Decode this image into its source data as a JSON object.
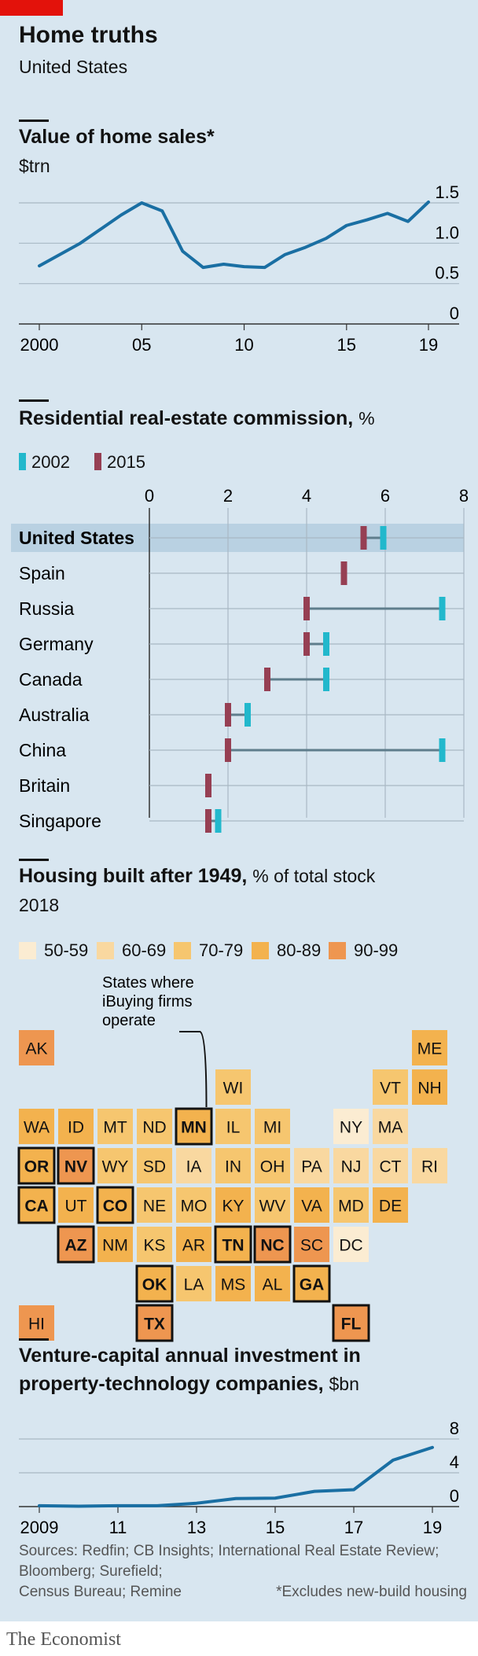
{
  "header": {
    "title": "Home truths",
    "subtitle": "United States"
  },
  "chart_data": [
    {
      "type": "line",
      "title": "Value of home sales*",
      "ylabel": "$trn",
      "x": [
        2000,
        2002,
        2004,
        2005,
        2006,
        2007,
        2008,
        2009,
        2010,
        2011,
        2012,
        2013,
        2014,
        2015,
        2016,
        2017,
        2018,
        2019
      ],
      "values": [
        0.72,
        1.0,
        1.35,
        1.5,
        1.4,
        0.9,
        0.7,
        0.74,
        0.71,
        0.7,
        0.86,
        0.95,
        1.06,
        1.22,
        1.29,
        1.37,
        1.27,
        1.51
      ],
      "ylim": [
        0,
        1.5
      ],
      "yticks": [
        "0",
        "0.5",
        "1.0",
        "1.5"
      ],
      "xticks": [
        "2000",
        "05",
        "10",
        "15",
        "19"
      ],
      "color": "#1a6fa3"
    },
    {
      "type": "range",
      "title": "Residential real-estate commission,",
      "title_unit": "%",
      "legend": [
        {
          "name": "2002",
          "color": "#22b8cc"
        },
        {
          "name": "2015",
          "color": "#963f53"
        }
      ],
      "xticks": [
        "0",
        "2",
        "4",
        "6",
        "8"
      ],
      "xlim": [
        0,
        8
      ],
      "rows": [
        {
          "country": "United States",
          "y2002": 5.95,
          "y2015": 5.45,
          "highlight": true
        },
        {
          "country": "Spain",
          "y2002": 4.95,
          "y2015": 4.95
        },
        {
          "country": "Russia",
          "y2002": 7.45,
          "y2015": 4.0
        },
        {
          "country": "Germany",
          "y2002": 4.5,
          "y2015": 4.0
        },
        {
          "country": "Canada",
          "y2002": 4.5,
          "y2015": 3.0
        },
        {
          "country": "Australia",
          "y2002": 2.5,
          "y2015": 2.0
        },
        {
          "country": "China",
          "y2002": 7.45,
          "y2015": 2.0
        },
        {
          "country": "Britain",
          "y2002": 1.5,
          "y2015": 1.5
        },
        {
          "country": "Singapore",
          "y2002": 1.75,
          "y2015": 1.5
        }
      ]
    },
    {
      "type": "tilemap",
      "title": "Housing built after 1949,",
      "title_unit": "% of total stock",
      "subtitle": "2018",
      "legend": [
        {
          "label": "50-59",
          "color": "#fbecd2"
        },
        {
          "label": "60-69",
          "color": "#f9d8a0"
        },
        {
          "label": "70-79",
          "color": "#f6c66f"
        },
        {
          "label": "80-89",
          "color": "#f3b24e"
        },
        {
          "label": "90-99",
          "color": "#ee9650"
        }
      ],
      "annotation": [
        "States where",
        "iBuying firms",
        "operate"
      ],
      "states": [
        {
          "code": "AK",
          "col": 0,
          "row": 0,
          "bin": 4,
          "ibuying": false
        },
        {
          "code": "ME",
          "col": 10,
          "row": 0,
          "bin": 3,
          "ibuying": false
        },
        {
          "code": "WI",
          "col": 5,
          "row": 1,
          "bin": 2,
          "ibuying": false
        },
        {
          "code": "VT",
          "col": 9,
          "row": 1,
          "bin": 2,
          "ibuying": false
        },
        {
          "code": "NH",
          "col": 10,
          "row": 1,
          "bin": 3,
          "ibuying": false
        },
        {
          "code": "WA",
          "col": 0,
          "row": 2,
          "bin": 3,
          "ibuying": false
        },
        {
          "code": "ID",
          "col": 1,
          "row": 2,
          "bin": 3,
          "ibuying": false
        },
        {
          "code": "MT",
          "col": 2,
          "row": 2,
          "bin": 2,
          "ibuying": false
        },
        {
          "code": "ND",
          "col": 3,
          "row": 2,
          "bin": 2,
          "ibuying": false
        },
        {
          "code": "MN",
          "col": 4,
          "row": 2,
          "bin": 3,
          "ibuying": true
        },
        {
          "code": "IL",
          "col": 5,
          "row": 2,
          "bin": 2,
          "ibuying": false
        },
        {
          "code": "MI",
          "col": 6,
          "row": 2,
          "bin": 2,
          "ibuying": false
        },
        {
          "code": "NY",
          "col": 8,
          "row": 2,
          "bin": 0,
          "ibuying": false
        },
        {
          "code": "MA",
          "col": 9,
          "row": 2,
          "bin": 1,
          "ibuying": false
        },
        {
          "code": "OR",
          "col": 0,
          "row": 3,
          "bin": 3,
          "ibuying": true
        },
        {
          "code": "NV",
          "col": 1,
          "row": 3,
          "bin": 4,
          "ibuying": true
        },
        {
          "code": "WY",
          "col": 2,
          "row": 3,
          "bin": 2,
          "ibuying": false
        },
        {
          "code": "SD",
          "col": 3,
          "row": 3,
          "bin": 2,
          "ibuying": false
        },
        {
          "code": "IA",
          "col": 4,
          "row": 3,
          "bin": 1,
          "ibuying": false
        },
        {
          "code": "IN",
          "col": 5,
          "row": 3,
          "bin": 2,
          "ibuying": false
        },
        {
          "code": "OH",
          "col": 6,
          "row": 3,
          "bin": 2,
          "ibuying": false
        },
        {
          "code": "PA",
          "col": 7,
          "row": 3,
          "bin": 1,
          "ibuying": false
        },
        {
          "code": "NJ",
          "col": 8,
          "row": 3,
          "bin": 1,
          "ibuying": false
        },
        {
          "code": "CT",
          "col": 9,
          "row": 3,
          "bin": 1,
          "ibuying": false
        },
        {
          "code": "RI",
          "col": 10,
          "row": 3,
          "bin": 1,
          "ibuying": false
        },
        {
          "code": "CA",
          "col": 0,
          "row": 4,
          "bin": 3,
          "ibuying": true
        },
        {
          "code": "UT",
          "col": 1,
          "row": 4,
          "bin": 3,
          "ibuying": false
        },
        {
          "code": "CO",
          "col": 2,
          "row": 4,
          "bin": 3,
          "ibuying": true
        },
        {
          "code": "NE",
          "col": 3,
          "row": 4,
          "bin": 2,
          "ibuying": false
        },
        {
          "code": "MO",
          "col": 4,
          "row": 4,
          "bin": 2,
          "ibuying": false
        },
        {
          "code": "KY",
          "col": 5,
          "row": 4,
          "bin": 3,
          "ibuying": false
        },
        {
          "code": "WV",
          "col": 6,
          "row": 4,
          "bin": 2,
          "ibuying": false
        },
        {
          "code": "VA",
          "col": 7,
          "row": 4,
          "bin": 3,
          "ibuying": false
        },
        {
          "code": "MD",
          "col": 8,
          "row": 4,
          "bin": 2,
          "ibuying": false
        },
        {
          "code": "DE",
          "col": 9,
          "row": 4,
          "bin": 3,
          "ibuying": false
        },
        {
          "code": "AZ",
          "col": 1,
          "row": 5,
          "bin": 4,
          "ibuying": true
        },
        {
          "code": "NM",
          "col": 2,
          "row": 5,
          "bin": 3,
          "ibuying": false
        },
        {
          "code": "KS",
          "col": 3,
          "row": 5,
          "bin": 2,
          "ibuying": false
        },
        {
          "code": "AR",
          "col": 4,
          "row": 5,
          "bin": 3,
          "ibuying": false
        },
        {
          "code": "TN",
          "col": 5,
          "row": 5,
          "bin": 3,
          "ibuying": true
        },
        {
          "code": "NC",
          "col": 6,
          "row": 5,
          "bin": 4,
          "ibuying": true
        },
        {
          "code": "SC",
          "col": 7,
          "row": 5,
          "bin": 4,
          "ibuying": false
        },
        {
          "code": "DC",
          "col": 8,
          "row": 5,
          "bin": 0,
          "ibuying": false
        },
        {
          "code": "OK",
          "col": 3,
          "row": 6,
          "bin": 3,
          "ibuying": true
        },
        {
          "code": "LA",
          "col": 4,
          "row": 6,
          "bin": 2,
          "ibuying": false
        },
        {
          "code": "MS",
          "col": 5,
          "row": 6,
          "bin": 3,
          "ibuying": false
        },
        {
          "code": "AL",
          "col": 6,
          "row": 6,
          "bin": 3,
          "ibuying": false
        },
        {
          "code": "GA",
          "col": 7,
          "row": 6,
          "bin": 3,
          "ibuying": true
        },
        {
          "code": "HI",
          "col": 0,
          "row": 7,
          "bin": 4,
          "ibuying": false
        },
        {
          "code": "TX",
          "col": 3,
          "row": 7,
          "bin": 4,
          "ibuying": true
        },
        {
          "code": "FL",
          "col": 8,
          "row": 7,
          "bin": 4,
          "ibuying": true
        }
      ]
    },
    {
      "type": "line",
      "title": "Venture-capital annual investment in",
      "title_line2": "property-technology companies,",
      "title_unit": "$bn",
      "x": [
        2009,
        2010,
        2011,
        2012,
        2013,
        2014,
        2015,
        2016,
        2017,
        2018,
        2019
      ],
      "values": [
        0.1,
        0.05,
        0.1,
        0.1,
        0.4,
        0.95,
        1.0,
        1.8,
        2.0,
        5.5,
        7.0
      ],
      "ylim": [
        0,
        8
      ],
      "yticks": [
        "0",
        "4",
        "8"
      ],
      "xticks": [
        "2009",
        "11",
        "13",
        "15",
        "17",
        "19"
      ],
      "color": "#1a6fa3"
    }
  ],
  "footer": {
    "sources": [
      "Sources: Redfin; CB Insights; International Real Estate Review;",
      "Bloomberg; Surefield;",
      "Census Bureau; Remine"
    ],
    "note": "*Excludes new-build housing",
    "brand": "The Economist"
  }
}
